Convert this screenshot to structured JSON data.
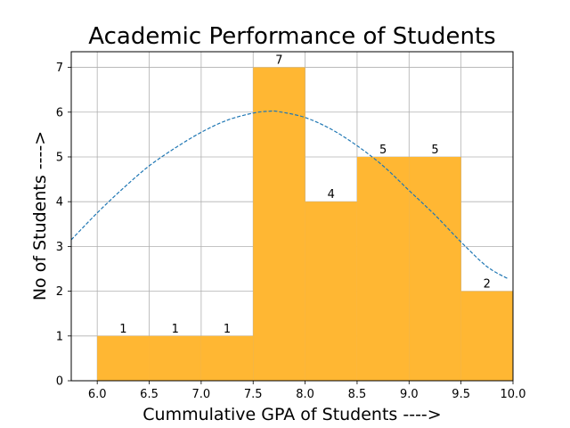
{
  "chart_data": {
    "type": "bar",
    "title": "Academic Performance of Students",
    "xlabel": "Cummulative GPA of Students ---->",
    "ylabel": "No of Students ---->",
    "bins": [
      {
        "start": 6.0,
        "end": 6.5,
        "value": 1
      },
      {
        "start": 6.5,
        "end": 7.0,
        "value": 1
      },
      {
        "start": 7.0,
        "end": 7.5,
        "value": 1
      },
      {
        "start": 7.5,
        "end": 8.0,
        "value": 7
      },
      {
        "start": 8.0,
        "end": 8.5,
        "value": 4
      },
      {
        "start": 8.5,
        "end": 9.0,
        "value": 5
      },
      {
        "start": 9.0,
        "end": 9.5,
        "value": 5
      },
      {
        "start": 9.5,
        "end": 10.0,
        "value": 2
      }
    ],
    "curve": {
      "style": "dashed",
      "points": [
        [
          5.75,
          3.15
        ],
        [
          6.0,
          3.75
        ],
        [
          6.25,
          4.3
        ],
        [
          6.5,
          4.8
        ],
        [
          6.75,
          5.2
        ],
        [
          7.0,
          5.55
        ],
        [
          7.25,
          5.82
        ],
        [
          7.5,
          5.98
        ],
        [
          7.65,
          6.02
        ],
        [
          7.75,
          6.01
        ],
        [
          8.0,
          5.88
        ],
        [
          8.25,
          5.62
        ],
        [
          8.5,
          5.25
        ],
        [
          8.75,
          4.8
        ],
        [
          9.0,
          4.25
        ],
        [
          9.25,
          3.7
        ],
        [
          9.5,
          3.1
        ],
        [
          9.75,
          2.55
        ],
        [
          9.95,
          2.28
        ]
      ]
    },
    "xlim": [
      5.75,
      10.0
    ],
    "ylim": [
      0,
      7.35
    ],
    "xticks": [
      "6.0",
      "6.5",
      "7.0",
      "7.5",
      "8.0",
      "8.5",
      "9.0",
      "9.5",
      "10.0"
    ],
    "yticks": [
      "0",
      "1",
      "2",
      "3",
      "4",
      "5",
      "6",
      "7"
    ],
    "grid": true,
    "colors": {
      "bar": "#ffb733",
      "curve": "#1f77b4",
      "grid": "#b0b0b0"
    }
  }
}
